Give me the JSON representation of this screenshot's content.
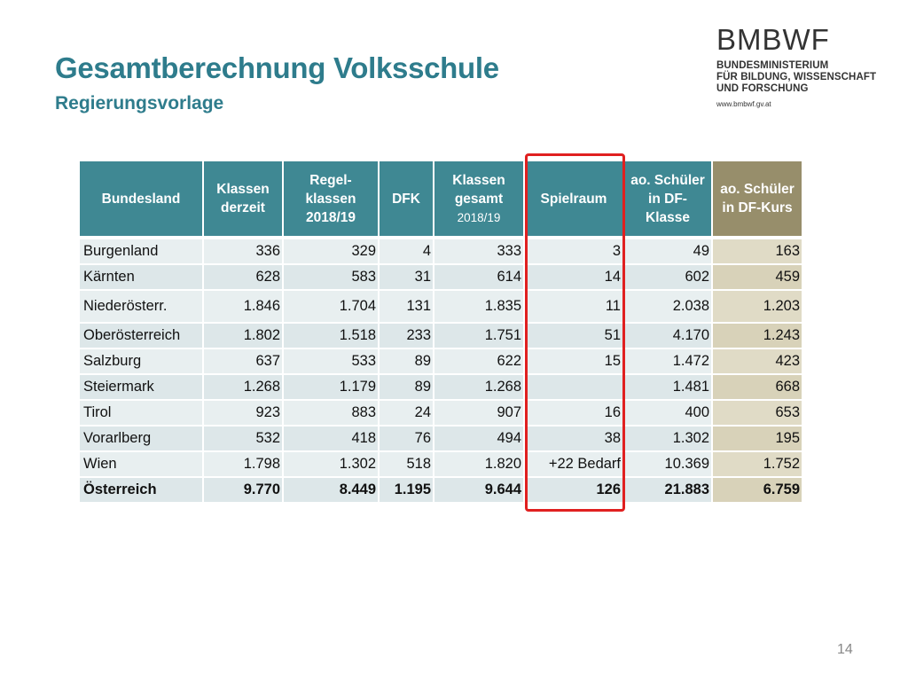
{
  "title": "Gesamtberechnung Volksschule",
  "subtitle": "Regierungsvorlage",
  "logo": {
    "abbr": "BMBWF",
    "line1": "BUNDESMINISTERIUM",
    "line2": "FÜR BILDUNG, WISSENSCHAFT",
    "line3": "UND FORSCHUNG",
    "url": "www.bmbwf.gv.at"
  },
  "table": {
    "headers": {
      "bundesland": "Bundesland",
      "klassen_derzeit_1": "Klassen",
      "klassen_derzeit_2": "derzeit",
      "regel_1": "Regel-",
      "regel_2": "klassen",
      "regel_3": "2018/19",
      "dfk": "DFK",
      "gesamt_1": "Klassen",
      "gesamt_2": "gesamt",
      "gesamt_3": "2018/19",
      "spielraum": "Spielraum",
      "ao_klasse_1": "ao. Schüler",
      "ao_klasse_2": "in DF-",
      "ao_klasse_3": "Klasse",
      "ao_kurs_1": "ao. Schüler",
      "ao_kurs_2": "in DF-Kurs"
    },
    "rows": [
      {
        "name": "Burgenland",
        "klassen": "336",
        "regel": "329",
        "dfk": "4",
        "gesamt": "333",
        "spielraum": "3",
        "ao_klasse": "49",
        "ao_kurs": "163"
      },
      {
        "name": "Kärnten",
        "klassen": "628",
        "regel": "583",
        "dfk": "31",
        "gesamt": "614",
        "spielraum": "14",
        "ao_klasse": "602",
        "ao_kurs": "459"
      },
      {
        "name": "Niederösterr.",
        "klassen": "1.846",
        "regel": "1.704",
        "dfk": "131",
        "gesamt": "1.835",
        "spielraum": "11",
        "ao_klasse": "2.038",
        "ao_kurs": "1.203"
      },
      {
        "name": "Oberösterreich",
        "klassen": "1.802",
        "regel": "1.518",
        "dfk": "233",
        "gesamt": "1.751",
        "spielraum": "51",
        "ao_klasse": "4.170",
        "ao_kurs": "1.243"
      },
      {
        "name": "Salzburg",
        "klassen": "637",
        "regel": "533",
        "dfk": "89",
        "gesamt": "622",
        "spielraum": "15",
        "ao_klasse": "1.472",
        "ao_kurs": "423"
      },
      {
        "name": "Steiermark",
        "klassen": "1.268",
        "regel": "1.179",
        "dfk": "89",
        "gesamt": "1.268",
        "spielraum": "",
        "ao_klasse": "1.481",
        "ao_kurs": "668"
      },
      {
        "name": "Tirol",
        "klassen": "923",
        "regel": "883",
        "dfk": "24",
        "gesamt": "907",
        "spielraum": "16",
        "ao_klasse": "400",
        "ao_kurs": "653"
      },
      {
        "name": "Vorarlberg",
        "klassen": "532",
        "regel": "418",
        "dfk": "76",
        "gesamt": "494",
        "spielraum": "38",
        "ao_klasse": "1.302",
        "ao_kurs": "195"
      },
      {
        "name": "Wien",
        "klassen": "1.798",
        "regel": "1.302",
        "dfk": "518",
        "gesamt": "1.820",
        "spielraum": "+22 Bedarf",
        "ao_klasse": "10.369",
        "ao_kurs": "1.752"
      },
      {
        "name": "Österreich",
        "klassen": "9.770",
        "regel": "8.449",
        "dfk": "1.195",
        "gesamt": "9.644",
        "spielraum": "126",
        "ao_klasse": "21.883",
        "ao_kurs": "6.759"
      }
    ]
  },
  "colors": {
    "title": "#2e7c8c",
    "header_teal": "#3f8893",
    "header_olive": "#978e6b",
    "highlight": "#e02020"
  },
  "page_number": "14"
}
